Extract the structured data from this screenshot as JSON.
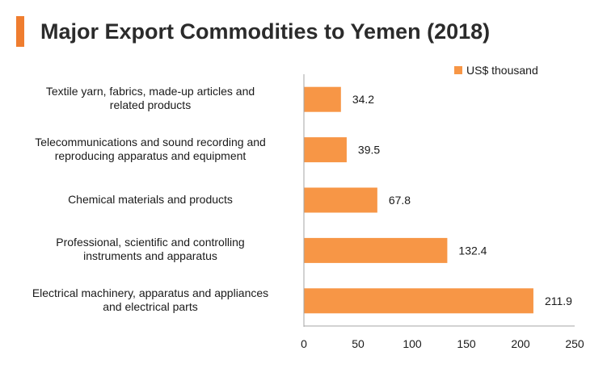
{
  "title": "Major Export Commodities to Yemen (2018)",
  "colors": {
    "accent": "#ef7d2f",
    "bar": "#f79646",
    "axis": "#a6a6a6"
  },
  "chart_data": {
    "type": "bar",
    "orientation": "horizontal",
    "title": "Major Export Commodities to Yemen (2018)",
    "categories": [
      [
        "Textile yarn, fabrics, made-up articles and",
        "related products"
      ],
      [
        "Telecommunications and sound recording and",
        "reproducing apparatus and equipment"
      ],
      [
        "Chemical materials and products"
      ],
      [
        "Professional, scientific and controlling",
        "instruments and apparatus"
      ],
      [
        "Electrical machinery, apparatus and appliances",
        "and electrical parts"
      ]
    ],
    "series": [
      {
        "name": "US$ thousand",
        "values": [
          34.2,
          39.5,
          67.8,
          132.4,
          211.9
        ]
      }
    ],
    "data_labels": [
      "34.2",
      "39.5",
      "67.8",
      "132.4",
      "211.9"
    ],
    "xlim": [
      0,
      250
    ],
    "xticks": [
      "0",
      "50",
      "100",
      "150",
      "200",
      "250"
    ],
    "legend_position": "top-right",
    "grid": false
  }
}
